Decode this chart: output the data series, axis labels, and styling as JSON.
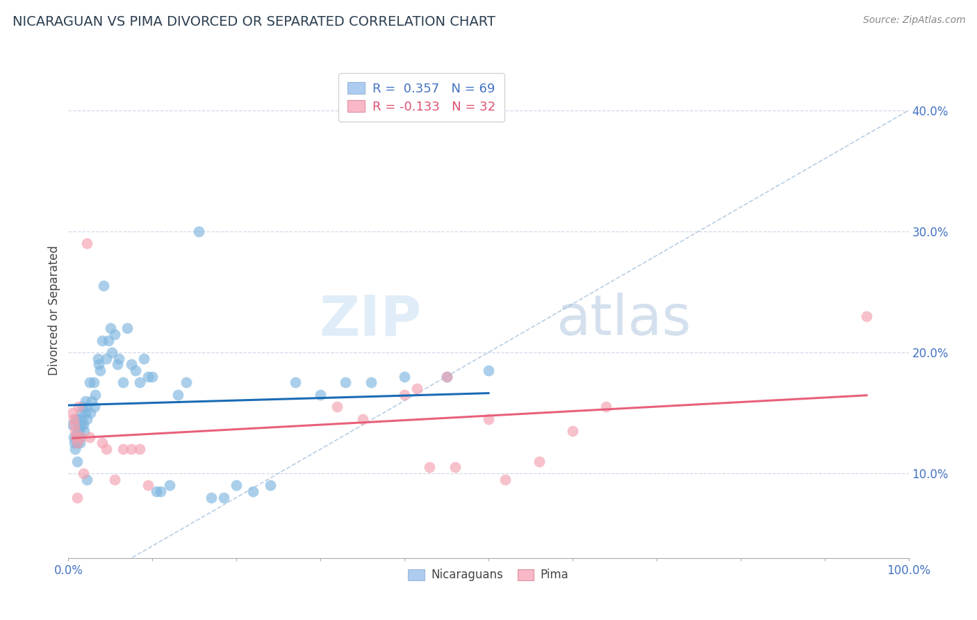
{
  "title": "NICARAGUAN VS PIMA DIVORCED OR SEPARATED CORRELATION CHART",
  "source": "Source: ZipAtlas.com",
  "ylabel": "Divorced or Separated",
  "ytick_vals": [
    0.1,
    0.2,
    0.3,
    0.4
  ],
  "ytick_labels": [
    "10.0%",
    "20.0%",
    "30.0%",
    "40.0%"
  ],
  "xlim": [
    0.0,
    1.0
  ],
  "ylim": [
    0.03,
    0.44
  ],
  "R_nicaraguan": 0.357,
  "N_nicaraguan": 69,
  "R_pima": -0.133,
  "N_pima": 32,
  "blue_color": "#7eb6e0",
  "pink_color": "#f4a0b0",
  "blue_line_color": "#1a6bb5",
  "pink_line_color": "#e8607a",
  "legend_blue_color": "#aeccf0",
  "legend_pink_color": "#f8b8c8",
  "blue_scatter_x": [
    0.005,
    0.006,
    0.007,
    0.008,
    0.009,
    0.01,
    0.01,
    0.01,
    0.01,
    0.011,
    0.012,
    0.013,
    0.013,
    0.014,
    0.015,
    0.015,
    0.016,
    0.017,
    0.018,
    0.019,
    0.02,
    0.02,
    0.021,
    0.022,
    0.022,
    0.025,
    0.026,
    0.028,
    0.03,
    0.031,
    0.032,
    0.035,
    0.036,
    0.038,
    0.04,
    0.042,
    0.045,
    0.048,
    0.05,
    0.052,
    0.055,
    0.058,
    0.06,
    0.065,
    0.07,
    0.075,
    0.08,
    0.085,
    0.09,
    0.095,
    0.1,
    0.105,
    0.11,
    0.12,
    0.13,
    0.14,
    0.155,
    0.17,
    0.185,
    0.2,
    0.22,
    0.24,
    0.27,
    0.3,
    0.33,
    0.36,
    0.4,
    0.45,
    0.5
  ],
  "blue_scatter_y": [
    0.14,
    0.13,
    0.125,
    0.12,
    0.145,
    0.135,
    0.13,
    0.125,
    0.11,
    0.145,
    0.14,
    0.135,
    0.13,
    0.125,
    0.15,
    0.14,
    0.145,
    0.155,
    0.14,
    0.135,
    0.16,
    0.15,
    0.155,
    0.145,
    0.095,
    0.175,
    0.15,
    0.16,
    0.175,
    0.155,
    0.165,
    0.195,
    0.19,
    0.185,
    0.21,
    0.255,
    0.195,
    0.21,
    0.22,
    0.2,
    0.215,
    0.19,
    0.195,
    0.175,
    0.22,
    0.19,
    0.185,
    0.175,
    0.195,
    0.18,
    0.18,
    0.085,
    0.085,
    0.09,
    0.165,
    0.175,
    0.3,
    0.08,
    0.08,
    0.09,
    0.085,
    0.09,
    0.175,
    0.165,
    0.175,
    0.175,
    0.18,
    0.18,
    0.185
  ],
  "pink_scatter_x": [
    0.005,
    0.006,
    0.007,
    0.008,
    0.009,
    0.01,
    0.01,
    0.012,
    0.015,
    0.018,
    0.022,
    0.025,
    0.04,
    0.045,
    0.055,
    0.065,
    0.075,
    0.085,
    0.095,
    0.32,
    0.35,
    0.4,
    0.415,
    0.43,
    0.45,
    0.46,
    0.5,
    0.52,
    0.56,
    0.6,
    0.64,
    0.95
  ],
  "pink_scatter_y": [
    0.15,
    0.145,
    0.14,
    0.135,
    0.13,
    0.125,
    0.08,
    0.155,
    0.13,
    0.1,
    0.29,
    0.13,
    0.125,
    0.12,
    0.095,
    0.12,
    0.12,
    0.12,
    0.09,
    0.155,
    0.145,
    0.165,
    0.17,
    0.105,
    0.18,
    0.105,
    0.145,
    0.095,
    0.11,
    0.135,
    0.155,
    0.23
  ],
  "watermark_zip": "ZIP",
  "watermark_atlas": "atlas",
  "background_color": "#ffffff",
  "grid_color": "#d0d8e8",
  "ref_line_color": "#b0c8e0"
}
